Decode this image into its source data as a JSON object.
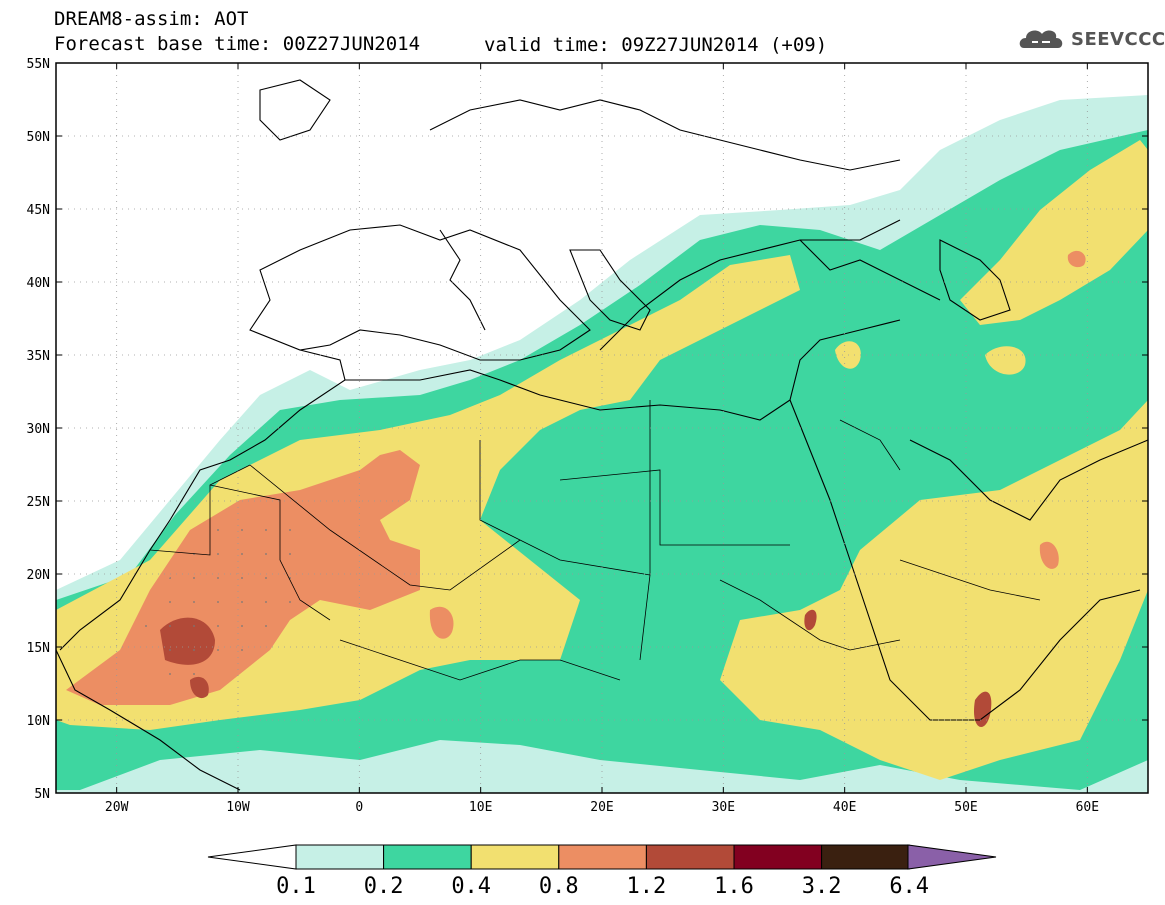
{
  "header": {
    "line1": "DREAM8-assim: AOT",
    "line2_base": "Forecast base time: 00Z27JUN2014",
    "line2_valid": "valid time: 09Z27JUN2014 (+09)",
    "logo_text": "SEEVCCC"
  },
  "map": {
    "lon_range": [
      -25,
      65
    ],
    "lat_range": [
      5,
      55
    ],
    "lat_labels": [
      "55N",
      "50N",
      "45N",
      "40N",
      "35N",
      "30N",
      "25N",
      "20N",
      "15N",
      "10N",
      "5N"
    ],
    "lon_labels": [
      "20W",
      "10W",
      "0",
      "10E",
      "20E",
      "30E",
      "40E",
      "50E",
      "60E"
    ]
  },
  "colorbar": {
    "labels": [
      "0.1",
      "0.2",
      "0.4",
      "0.8",
      "1.2",
      "1.6",
      "3.2",
      "6.4"
    ],
    "colors": [
      "#c6f0e6",
      "#3ed6a0",
      "#f2e070",
      "#ec8e63",
      "#b24a38",
      "#820020",
      "#3a2010",
      "#8a60a8"
    ],
    "low_color": "#ffffff"
  }
}
